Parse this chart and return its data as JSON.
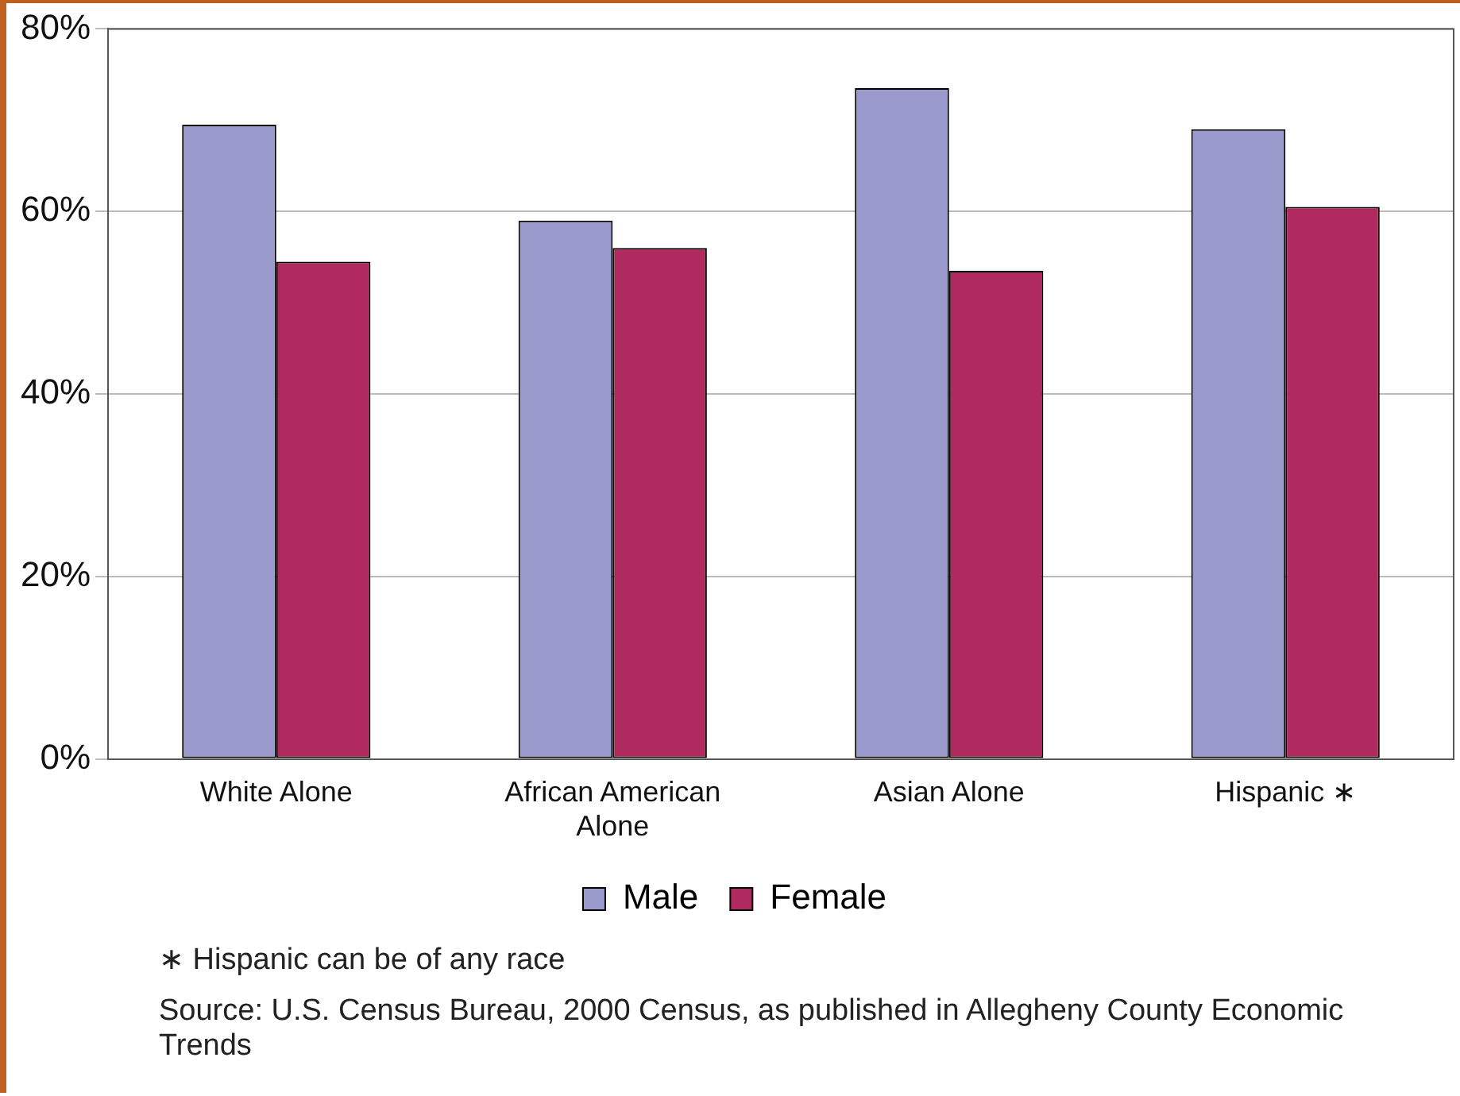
{
  "chart_data": {
    "type": "bar",
    "categories": [
      "White Alone",
      "African American Alone",
      "Asian Alone",
      "Hispanic ∗"
    ],
    "series": [
      {
        "name": "Male",
        "color": "#9999cc",
        "values": [
          69.5,
          59,
          73.5,
          69
        ]
      },
      {
        "name": "Female",
        "color": "#b0295f",
        "values": [
          54.5,
          56,
          53.5,
          60.5
        ]
      }
    ],
    "ylim": [
      0,
      80
    ],
    "yticks": [
      {
        "value": 0,
        "label": "0%"
      },
      {
        "value": 20,
        "label": "20%"
      },
      {
        "value": 40,
        "label": "40%"
      },
      {
        "value": 60,
        "label": "60%"
      },
      {
        "value": 80,
        "label": "80%"
      }
    ],
    "grid": "y",
    "legend": "bottom",
    "annotations": [
      "∗ Hispanic can be of any race",
      "Source:  U.S. Census Bureau, 2000 Census, as published in Allegheny County Economic Trends"
    ]
  }
}
